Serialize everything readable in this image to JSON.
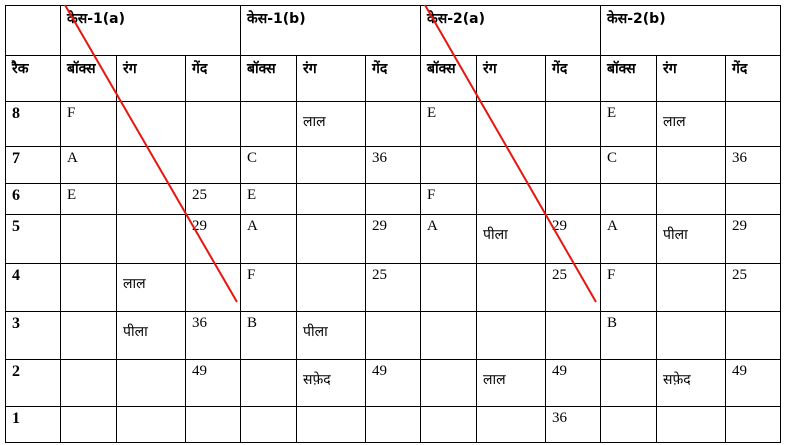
{
  "cases": [
    "केस-1(a)",
    "केस-1(b)",
    "केस-2(a)",
    "केस-2(b)"
  ],
  "subheaders": {
    "rack": "रैक",
    "box": "बॉक्स",
    "color": "रंग",
    "ball": "गेंद"
  },
  "rows": [
    {
      "rack": "8",
      "cells": [
        "F",
        "",
        "",
        "",
        "लाल",
        "",
        "E",
        "",
        "",
        "E",
        "लाल",
        ""
      ]
    },
    {
      "rack": "7",
      "cells": [
        "A",
        "",
        "",
        "C",
        "",
        "36",
        "",
        "",
        "",
        "C",
        "",
        "36"
      ]
    },
    {
      "rack": "6",
      "cells": [
        "E",
        "",
        "25",
        "E",
        "",
        "",
        "F",
        "",
        "",
        "",
        "",
        ""
      ]
    },
    {
      "rack": "5",
      "cells": [
        "",
        "",
        "29",
        "A",
        "",
        "29",
        "A",
        "पीला",
        "29",
        "A",
        "पीला",
        "29"
      ]
    },
    {
      "rack": "4",
      "cells": [
        "",
        "लाल",
        "",
        "F",
        "",
        "25",
        "",
        "",
        "25",
        "F",
        "",
        "25"
      ]
    },
    {
      "rack": "3",
      "cells": [
        "",
        "पीला",
        "36",
        "B",
        "पीला",
        "",
        "",
        "",
        "",
        "B",
        "",
        ""
      ]
    },
    {
      "rack": "2",
      "cells": [
        "",
        "",
        "49",
        "",
        "सफ़ेद",
        "49",
        "",
        "लाल",
        "49",
        "",
        "सफ़ेद",
        "49"
      ]
    },
    {
      "rack": "1",
      "cells": [
        "",
        "",
        "",
        "",
        "",
        "",
        "",
        "",
        "36",
        "",
        "",
        ""
      ]
    }
  ],
  "strikethrough_cases": [
    "केस-1(a)",
    "केस-2(a)"
  ],
  "colors": {
    "strike": "#e8150f",
    "border": "#000000"
  }
}
